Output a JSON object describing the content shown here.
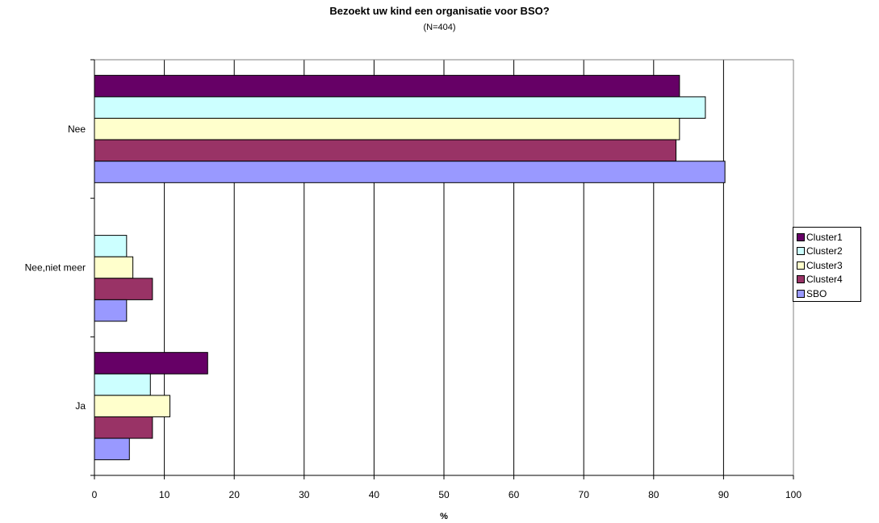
{
  "chart_data": {
    "type": "bar",
    "orientation": "horizontal",
    "title": "Bezoekt uw kind een organisatie voor BSO?",
    "subtitle": "(N=404)",
    "xlabel": "%",
    "ylabel": "",
    "xlim": [
      0,
      100
    ],
    "xticks": [
      "0",
      "10",
      "20",
      "30",
      "40",
      "50",
      "60",
      "70",
      "80",
      "90",
      "100"
    ],
    "grid": "vertical",
    "legend_position": "right",
    "categories": [
      "Nee",
      "Nee,niet meer",
      "Ja"
    ],
    "series": [
      {
        "name": "Cluster1",
        "color": "#660066",
        "values": [
          83.7,
          0,
          16.2
        ]
      },
      {
        "name": "Cluster2",
        "color": "#ccffff",
        "values": [
          87.4,
          4.6,
          8.0
        ]
      },
      {
        "name": "Cluster3",
        "color": "#ffffcc",
        "values": [
          83.7,
          5.5,
          10.8
        ]
      },
      {
        "name": "Cluster4",
        "color": "#993366",
        "values": [
          83.2,
          8.3,
          8.3
        ]
      },
      {
        "name": "SBO",
        "color": "#9999ff",
        "values": [
          90.2,
          4.6,
          5.0
        ]
      }
    ]
  }
}
